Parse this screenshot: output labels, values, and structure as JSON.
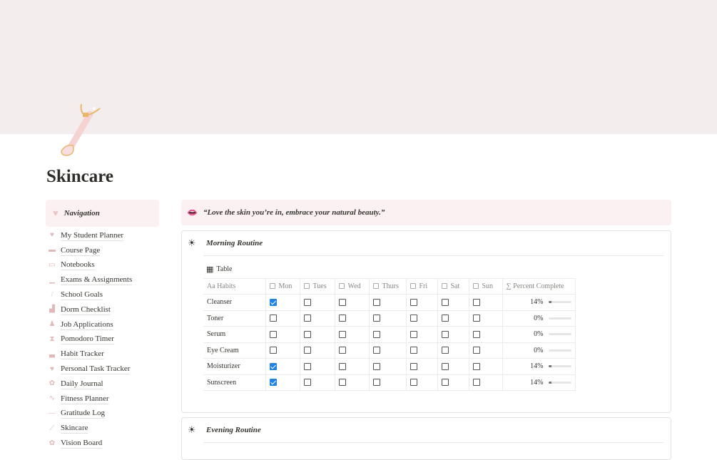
{
  "page": {
    "title": "Skincare",
    "icon": "jade-roller-icon",
    "banner_color": "#f3eded"
  },
  "navigation": {
    "title": "Navigation",
    "icon": "heart-icon",
    "items": [
      {
        "label": "My Student Planner",
        "icon": "heart-link-icon"
      },
      {
        "label": "Course Page",
        "icon": "folder-icon"
      },
      {
        "label": "Notebooks",
        "icon": "notebook-icon"
      },
      {
        "label": "Exams & Assignments",
        "icon": "laptop-icon"
      },
      {
        "label": "School Goals",
        "icon": "pencil-icon"
      },
      {
        "label": "Dorm Checklist",
        "icon": "building-icon"
      },
      {
        "label": "Job Applications",
        "icon": "person-icon"
      },
      {
        "label": "Pomodoro Timer",
        "icon": "hourglass-icon"
      },
      {
        "label": "Habit Tracker",
        "icon": "book-icon"
      },
      {
        "label": "Personal Task Tracker",
        "icon": "heart-icon"
      },
      {
        "label": "Daily Journal",
        "icon": "flower-icon"
      },
      {
        "label": "Fitness Planner",
        "icon": "pulse-icon"
      },
      {
        "label": "Gratitude Log",
        "icon": "line-icon"
      },
      {
        "label": "Skincare",
        "icon": "roller-icon"
      },
      {
        "label": "Vision Board",
        "icon": "flower-icon"
      }
    ]
  },
  "quote": {
    "text": "“Love the skin you’re in, embrace your natural beauty.”",
    "icon": "lips-icon"
  },
  "morning": {
    "title": "Morning Routine",
    "icon": "sun-icon",
    "view_label": "Table",
    "columns": [
      "Habits",
      "Mon",
      "Tues",
      "Wed",
      "Thurs",
      "Fri",
      "Sat",
      "Sun",
      "Percent Complete"
    ],
    "rows": [
      {
        "habit": "Cleanser",
        "checks": [
          true,
          false,
          false,
          false,
          false,
          false,
          false
        ],
        "percent": "14%",
        "value": 14
      },
      {
        "habit": "Toner",
        "checks": [
          false,
          false,
          false,
          false,
          false,
          false,
          false
        ],
        "percent": "0%",
        "value": 0
      },
      {
        "habit": "Serum",
        "checks": [
          false,
          false,
          false,
          false,
          false,
          false,
          false
        ],
        "percent": "0%",
        "value": 0
      },
      {
        "habit": "Eye Cream",
        "checks": [
          false,
          false,
          false,
          false,
          false,
          false,
          false
        ],
        "percent": "0%",
        "value": 0
      },
      {
        "habit": "Moisturizer",
        "checks": [
          true,
          false,
          false,
          false,
          false,
          false,
          false
        ],
        "percent": "14%",
        "value": 14
      },
      {
        "habit": "Sunscreen",
        "checks": [
          true,
          false,
          false,
          false,
          false,
          false,
          false
        ],
        "percent": "14%",
        "value": 14
      }
    ]
  },
  "evening": {
    "title": "Evening Routine",
    "icon": "sun-icon"
  },
  "colors": {
    "accent": "#2383e2",
    "callout": "#fbf0f2"
  }
}
